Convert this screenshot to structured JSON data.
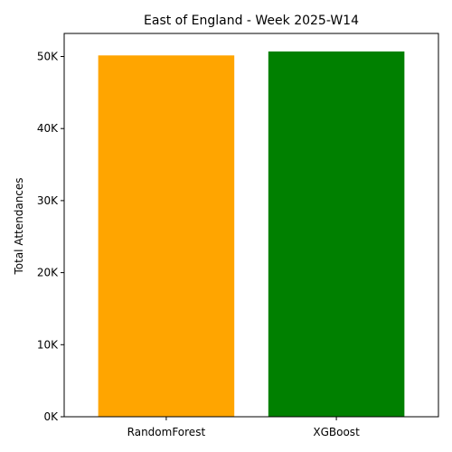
{
  "chart_data": {
    "type": "bar",
    "title": "East of England - Week 2025-W14",
    "xlabel": "",
    "ylabel": "Total Attendances",
    "categories": [
      "RandomForest",
      "XGBoost"
    ],
    "values": [
      50150,
      50700
    ],
    "bar_colors": [
      "#FFA500",
      "#008000"
    ],
    "ylim": [
      0,
      53200
    ],
    "yticks": [
      0,
      10000,
      20000,
      30000,
      40000,
      50000
    ],
    "ytick_labels": [
      "0K",
      "10K",
      "20K",
      "30K",
      "40K",
      "50K"
    ],
    "grid": false,
    "legend": "none"
  }
}
